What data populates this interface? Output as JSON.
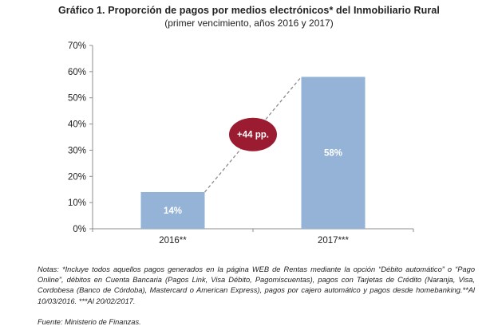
{
  "header": {
    "title": "Gráfico 1. Proporción de pagos por medios electrónicos* del Inmobiliario Rural",
    "subtitle": "(primer vencimiento, años 2016 y 2017)"
  },
  "chart_data": {
    "type": "bar",
    "categories": [
      "2016**",
      "2017***"
    ],
    "values": [
      14,
      58
    ],
    "value_labels": [
      "14%",
      "58%"
    ],
    "ylim": [
      0,
      70
    ],
    "yticks": [
      "0%",
      "10%",
      "20%",
      "30%",
      "40%",
      "50%",
      "60%",
      "70%"
    ],
    "grid": false,
    "bar_color": "#95b3d7",
    "annotation": {
      "text": "+44 pp.",
      "color": "#9b1b30",
      "connector": "dashed"
    }
  },
  "footer": {
    "note": "Notas: *Incluye todos aquellos pagos generados en la página WEB de Rentas mediante la opción “Débito automático” o “Pago Online”, débitos en Cuenta Bancaria (Pagos Link, Visa Débito, Pagomiscuentas), pagos con Tarjetas de Crédito (Naranja, Visa, Cordobesa (Banco de Córdoba), Mastercard o American Express), pagos por cajero automático y pagos desde homebanking.**Al 10/03/2016. ***Al 20/02/2017.",
    "source": "Fuente: Ministerio de Finanzas."
  }
}
